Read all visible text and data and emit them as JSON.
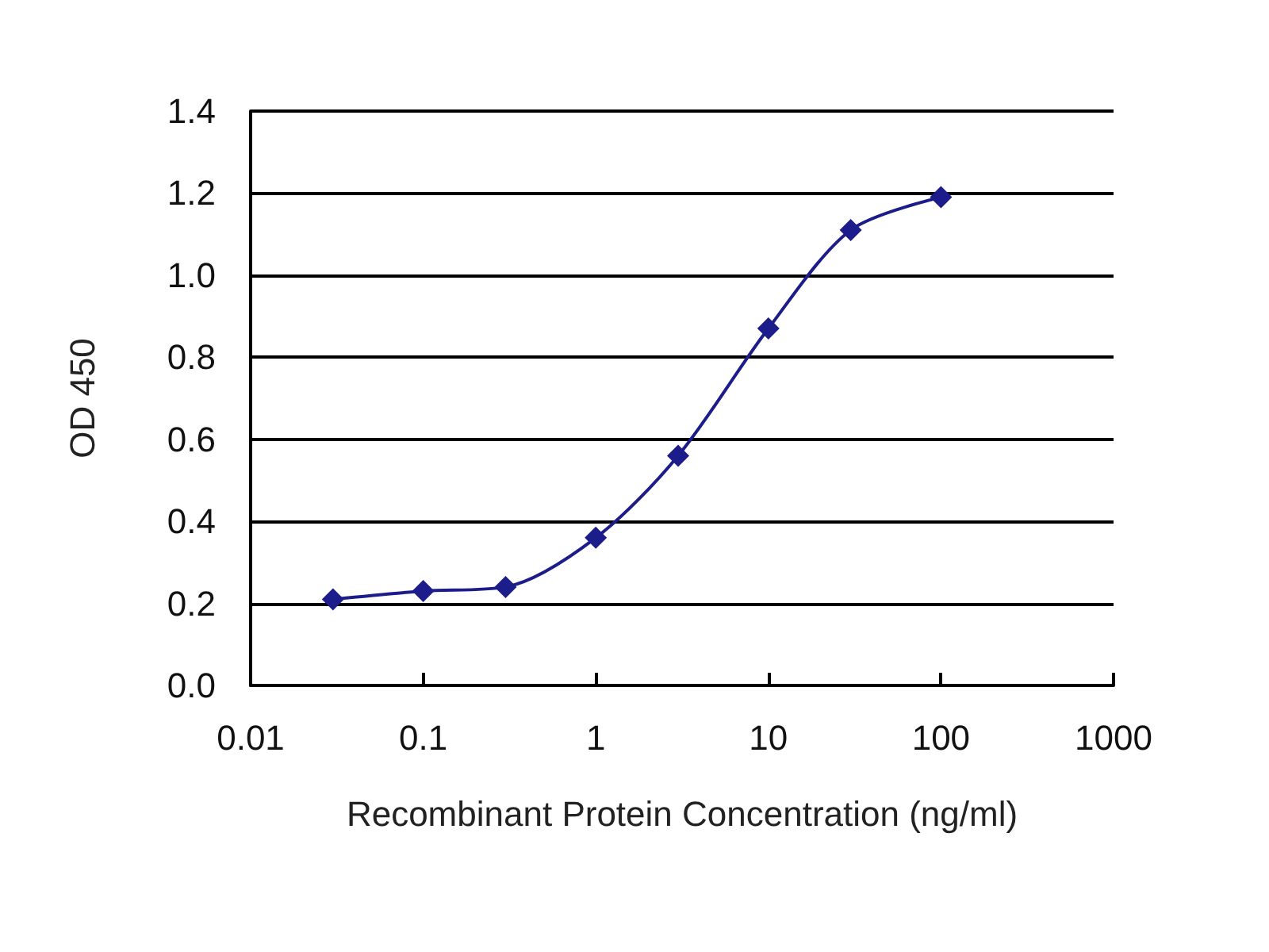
{
  "chart_data": {
    "type": "line",
    "xlabel": "Recombinant Protein Concentration (ng/ml)",
    "ylabel": "OD 450",
    "x": [
      0.03,
      0.1,
      0.3,
      1,
      3,
      10,
      30,
      100
    ],
    "series": [
      {
        "color": "#1c1c8a",
        "values": [
          0.21,
          0.23,
          0.24,
          0.36,
          0.56,
          0.87,
          1.11,
          1.19
        ]
      }
    ],
    "log": "x",
    "xlim": [
      0.01,
      1000
    ],
    "xticks": [
      0.01,
      0.1,
      1,
      10,
      100,
      1000
    ],
    "ylim": [
      0,
      1.4
    ],
    "yticks": [
      {
        "value": 0,
        "label": "0.0"
      },
      {
        "value": 0.2,
        "label": "0.2"
      },
      {
        "value": 0.4,
        "label": "0.4"
      },
      {
        "value": 0.6,
        "label": "0.6"
      },
      {
        "value": 0.8,
        "label": "0.8"
      },
      {
        "value": 1,
        "label": "1.0"
      },
      {
        "value": 1.2,
        "label": "1.2"
      },
      {
        "value": 1.4,
        "label": "1.4"
      }
    ],
    "grid": "y",
    "marker": "diamond",
    "line_style": "solid"
  }
}
